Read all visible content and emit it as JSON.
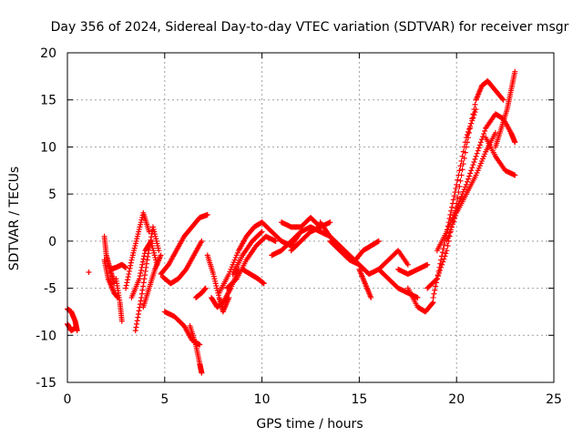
{
  "chart_data": {
    "type": "scatter",
    "title": "Day 356 of 2024, Sidereal Day-to-day VTEC variation (SDTVAR) for receiver msgr",
    "xlabel": "GPS time / hours",
    "ylabel": "SDTVAR / TECUs",
    "xlim": [
      0,
      25
    ],
    "ylim": [
      -15,
      20
    ],
    "xticks": [
      0,
      5,
      10,
      15,
      20,
      25
    ],
    "yticks": [
      -15,
      -10,
      -5,
      0,
      5,
      10,
      15,
      20
    ],
    "grid": true,
    "marker": "+",
    "color": "#ff0000",
    "series": [
      {
        "name": "s01",
        "x": [
          0.0,
          0.2,
          0.4,
          0.5
        ],
        "y": [
          -7.2,
          -7.5,
          -8.5,
          -9.5
        ]
      },
      {
        "name": "s02",
        "x": [
          0.0,
          0.2,
          0.4
        ],
        "y": [
          -8.8,
          -9.5,
          -9.2
        ]
      },
      {
        "name": "s03",
        "x": [
          1.1
        ],
        "y": [
          -3.3
        ]
      },
      {
        "name": "s04",
        "x": [
          1.9,
          2.0,
          2.2,
          2.4
        ],
        "y": [
          0.5,
          -1.5,
          -3.0,
          -4.5
        ]
      },
      {
        "name": "s05",
        "x": [
          1.9,
          2.1,
          2.4,
          2.6
        ],
        "y": [
          -2.0,
          -4.0,
          -5.5,
          -6.0
        ]
      },
      {
        "name": "s06",
        "x": [
          2.5,
          2.7,
          2.8
        ],
        "y": [
          -4.0,
          -6.5,
          -8.5
        ]
      },
      {
        "name": "s07",
        "x": [
          2.2,
          2.5,
          2.8,
          3.0
        ],
        "y": [
          -3.0,
          -2.8,
          -2.5,
          -2.8
        ]
      },
      {
        "name": "s08",
        "x": [
          3.0,
          3.3,
          3.6,
          3.9,
          4.2
        ],
        "y": [
          -5.0,
          -2.0,
          0.5,
          3.0,
          1.0
        ]
      },
      {
        "name": "s09",
        "x": [
          3.5,
          3.8,
          4.1,
          4.4,
          4.7
        ],
        "y": [
          -9.5,
          -6.0,
          -2.0,
          1.5,
          -1.0
        ]
      },
      {
        "name": "s10",
        "x": [
          3.3,
          3.7,
          4.0,
          4.3,
          4.6
        ],
        "y": [
          -6.0,
          -4.0,
          -1.0,
          0.0,
          -2.5
        ]
      },
      {
        "name": "s11",
        "x": [
          3.9,
          4.2,
          4.5,
          4.8
        ],
        "y": [
          -7.0,
          -5.0,
          -3.0,
          -1.5
        ]
      },
      {
        "name": "s12",
        "x": [
          4.8,
          5.2,
          5.6,
          6.0,
          6.4,
          6.8,
          7.2
        ],
        "y": [
          -3.5,
          -2.5,
          -1.0,
          0.5,
          1.5,
          2.5,
          2.8
        ]
      },
      {
        "name": "s13",
        "x": [
          4.9,
          5.3,
          5.7,
          6.1,
          6.5,
          6.9
        ],
        "y": [
          -3.8,
          -4.5,
          -4.0,
          -3.0,
          -1.5,
          0.0
        ]
      },
      {
        "name": "s14",
        "x": [
          5.0,
          5.5,
          6.0,
          6.4,
          6.8
        ],
        "y": [
          -7.5,
          -8.0,
          -9.0,
          -10.5,
          -11.0
        ]
      },
      {
        "name": "s15",
        "x": [
          6.3,
          6.6,
          6.8,
          6.9
        ],
        "y": [
          -9.0,
          -11.0,
          -13.0,
          -14.0
        ]
      },
      {
        "name": "s16",
        "x": [
          6.6,
          6.9,
          7.1
        ],
        "y": [
          -6.0,
          -5.5,
          -5.0
        ]
      },
      {
        "name": "s17",
        "x": [
          7.2,
          7.5,
          7.8,
          8.0,
          8.3
        ],
        "y": [
          -1.5,
          -3.5,
          -6.0,
          -7.5,
          -6.0
        ]
      },
      {
        "name": "s18",
        "x": [
          7.4,
          7.7,
          8.0,
          8.4,
          8.8
        ],
        "y": [
          -6.0,
          -7.0,
          -6.5,
          -5.0,
          -3.0
        ]
      },
      {
        "name": "s19",
        "x": [
          7.8,
          8.3,
          8.8,
          9.2,
          9.6,
          10.0
        ],
        "y": [
          -5.5,
          -3.5,
          -1.0,
          0.5,
          1.5,
          2.0
        ]
      },
      {
        "name": "s20",
        "x": [
          8.2,
          8.7,
          9.2,
          9.7,
          10.2,
          10.7
        ],
        "y": [
          -5.0,
          -4.0,
          -2.0,
          -0.5,
          0.5,
          0.0
        ]
      },
      {
        "name": "s21",
        "x": [
          8.5,
          9.0,
          9.5,
          10.0
        ],
        "y": [
          -3.5,
          -1.5,
          0.0,
          1.0
        ]
      },
      {
        "name": "s22",
        "x": [
          9.0,
          9.4,
          9.8,
          10.1
        ],
        "y": [
          -3.0,
          -3.5,
          -4.0,
          -4.5
        ]
      },
      {
        "name": "s23",
        "x": [
          10.0,
          10.5,
          11.0,
          11.5,
          12.0
        ],
        "y": [
          2.0,
          1.0,
          0.0,
          -0.5,
          1.0
        ]
      },
      {
        "name": "s24",
        "x": [
          10.5,
          11.0,
          11.5,
          12.0,
          12.5,
          13.0,
          13.5
        ],
        "y": [
          -1.5,
          -1.0,
          0.0,
          1.0,
          1.5,
          1.0,
          0.5
        ]
      },
      {
        "name": "s25",
        "x": [
          11.5,
          12.0,
          12.5,
          13.0,
          13.5
        ],
        "y": [
          -1.0,
          0.0,
          1.0,
          1.5,
          2.0
        ]
      },
      {
        "name": "s26",
        "x": [
          11.0,
          11.5,
          12.0,
          12.5,
          13.0
        ],
        "y": [
          2.0,
          1.5,
          1.5,
          2.5,
          1.5
        ]
      },
      {
        "name": "s27",
        "x": [
          13.0,
          13.5,
          14.0,
          14.5,
          15.0
        ],
        "y": [
          2.0,
          0.5,
          -0.5,
          -1.5,
          -2.5
        ]
      },
      {
        "name": "s28",
        "x": [
          13.5,
          14.0,
          14.5,
          15.0,
          15.5
        ],
        "y": [
          0.0,
          -1.0,
          -2.0,
          -2.5,
          -3.5
        ]
      },
      {
        "name": "s29",
        "x": [
          14.8,
          15.2,
          15.6,
          16.0
        ],
        "y": [
          -2.0,
          -1.0,
          -0.5,
          0.0
        ]
      },
      {
        "name": "s30",
        "x": [
          15.0,
          15.3,
          15.6
        ],
        "y": [
          -3.0,
          -4.5,
          -6.0
        ]
      },
      {
        "name": "s31",
        "x": [
          15.5,
          16.0,
          16.5,
          17.0,
          17.5
        ],
        "y": [
          -3.5,
          -3.0,
          -2.0,
          -1.0,
          -2.5
        ]
      },
      {
        "name": "s32",
        "x": [
          16.0,
          16.5,
          17.0,
          17.5,
          18.0
        ],
        "y": [
          -3.0,
          -4.0,
          -5.0,
          -5.5,
          -6.0
        ]
      },
      {
        "name": "s33",
        "x": [
          17.5,
          18.0,
          18.4,
          18.8
        ],
        "y": [
          -5.0,
          -7.0,
          -7.5,
          -6.5
        ]
      },
      {
        "name": "s34",
        "x": [
          17.0,
          17.5,
          18.0,
          18.5
        ],
        "y": [
          -3.0,
          -3.5,
          -3.0,
          -2.5
        ]
      },
      {
        "name": "s35",
        "x": [
          18.5,
          19.0,
          19.5,
          20.0,
          20.5,
          21.0,
          21.3
        ],
        "y": [
          -5.0,
          -4.0,
          -1.0,
          4.0,
          10.0,
          15.0,
          16.5
        ]
      },
      {
        "name": "s36",
        "x": [
          18.8,
          19.2,
          19.6,
          20.0,
          20.5,
          21.0
        ],
        "y": [
          -6.0,
          -2.0,
          2.0,
          6.0,
          11.0,
          14.0
        ]
      },
      {
        "name": "s37",
        "x": [
          19.0,
          19.5,
          20.0,
          20.5,
          21.0,
          21.5
        ],
        "y": [
          -1.0,
          1.0,
          3.5,
          6.0,
          9.0,
          12.0
        ]
      },
      {
        "name": "s38",
        "x": [
          19.5,
          20.0,
          20.5,
          21.0,
          21.5,
          22.0
        ],
        "y": [
          0.0,
          3.0,
          5.0,
          7.0,
          9.5,
          11.5
        ]
      },
      {
        "name": "s39",
        "x": [
          21.3,
          21.6,
          22.0,
          22.4
        ],
        "y": [
          16.5,
          17.0,
          16.0,
          15.0
        ]
      },
      {
        "name": "s40",
        "x": [
          21.5,
          22.0,
          22.4,
          22.8,
          23.0
        ],
        "y": [
          12.0,
          13.5,
          13.0,
          11.5,
          10.5
        ]
      },
      {
        "name": "s41",
        "x": [
          21.5,
          22.0,
          22.5,
          23.0
        ],
        "y": [
          11.0,
          9.0,
          7.5,
          7.0
        ]
      },
      {
        "name": "s42",
        "x": [
          22.0,
          22.3,
          22.6,
          22.8,
          23.0
        ],
        "y": [
          10.0,
          12.0,
          14.0,
          16.0,
          18.0
        ]
      }
    ]
  }
}
